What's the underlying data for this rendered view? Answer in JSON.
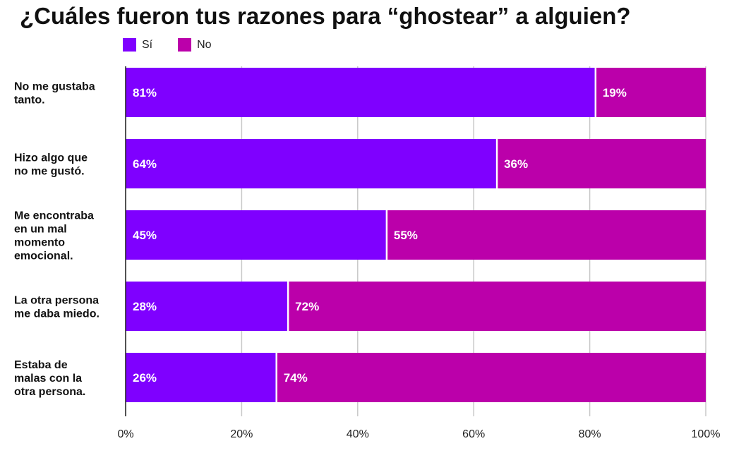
{
  "chart_data": {
    "type": "bar",
    "orientation": "horizontal",
    "stacked": true,
    "title": "¿Cuáles fueron tus razones para “ghostear” a alguien?",
    "categories": [
      [
        "No me gustaba",
        "tanto."
      ],
      [
        "Hizo algo que",
        "no me gustó."
      ],
      [
        "Me encontraba",
        "en un mal",
        "momento",
        "emocional."
      ],
      [
        "La otra persona",
        "me daba miedo."
      ],
      [
        "Estaba de",
        "malas con la",
        "otra persona."
      ]
    ],
    "series": [
      {
        "name": "Sí",
        "color": "#7f00ff",
        "values": [
          81,
          64,
          45,
          28,
          26
        ]
      },
      {
        "name": "No",
        "color": "#bb00aa",
        "values": [
          19,
          36,
          55,
          72,
          74
        ]
      }
    ],
    "xlim": [
      0,
      100
    ],
    "xticks": [
      0,
      20,
      40,
      60,
      80,
      100
    ],
    "xtick_labels": [
      "0%",
      "20%",
      "40%",
      "60%",
      "80%",
      "100%"
    ],
    "value_format": "{v}%",
    "legend_position": "top-left",
    "grid": "vertical"
  }
}
